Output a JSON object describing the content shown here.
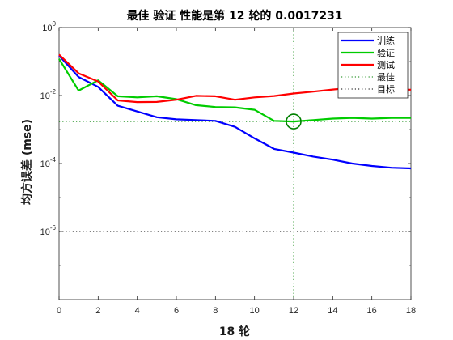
{
  "chart_data": {
    "type": "line",
    "title": "最佳 验证 性能是第 12 轮的 0.0017231",
    "xlabel": "18 轮",
    "ylabel": "均方误差 (mse)",
    "xlim": [
      0,
      18
    ],
    "ylim": [
      1e-08,
      1
    ],
    "yscale": "log",
    "x_ticks": [
      0,
      2,
      4,
      6,
      8,
      10,
      12,
      14,
      16,
      18
    ],
    "y_ticks": [
      {
        "base": "10",
        "exp": "0",
        "value": 1
      },
      {
        "base": "10",
        "exp": "-2",
        "value": 0.01
      },
      {
        "base": "10",
        "exp": "-4",
        "value": 0.0001
      },
      {
        "base": "10",
        "exp": "-6",
        "value": 1e-06
      }
    ],
    "x": [
      0,
      1,
      2,
      3,
      4,
      5,
      6,
      7,
      8,
      9,
      10,
      11,
      12,
      13,
      14,
      15,
      16,
      17,
      18
    ],
    "series": [
      {
        "name": "训练",
        "color": "#0000ff",
        "style": "solid",
        "values": [
          0.15,
          0.035,
          0.018,
          0.005,
          0.0034,
          0.0023,
          0.002,
          0.0019,
          0.0018,
          0.0012,
          0.00055,
          0.00027,
          0.00021,
          0.00016,
          0.00013,
          0.0001,
          8.5e-05,
          7.5e-05,
          7.2e-05
        ]
      },
      {
        "name": "验证",
        "color": "#00cc00",
        "style": "solid",
        "values": [
          0.12,
          0.014,
          0.028,
          0.0095,
          0.0088,
          0.0095,
          0.0078,
          0.0052,
          0.0046,
          0.0045,
          0.0038,
          0.0018,
          0.0017231,
          0.0019,
          0.0021,
          0.0022,
          0.0021,
          0.0022,
          0.0022
        ]
      },
      {
        "name": "测试",
        "color": "#ff0000",
        "style": "solid",
        "values": [
          0.16,
          0.045,
          0.026,
          0.0072,
          0.0064,
          0.0065,
          0.0075,
          0.0098,
          0.0095,
          0.0075,
          0.0088,
          0.0097,
          0.0115,
          0.013,
          0.015,
          0.017,
          0.0165,
          0.015,
          0.0148
        ]
      },
      {
        "name": "最佳",
        "color": "#008000",
        "style": "dotted",
        "x_value": 12,
        "y_value": 0.0017231
      },
      {
        "name": "目标",
        "color": "#000000",
        "style": "dotted",
        "y_value": 1e-06
      }
    ],
    "best_marker": {
      "x": 12,
      "y": 0.0017231,
      "color": "#008000"
    },
    "grid": false,
    "legend_position": "top-right"
  }
}
